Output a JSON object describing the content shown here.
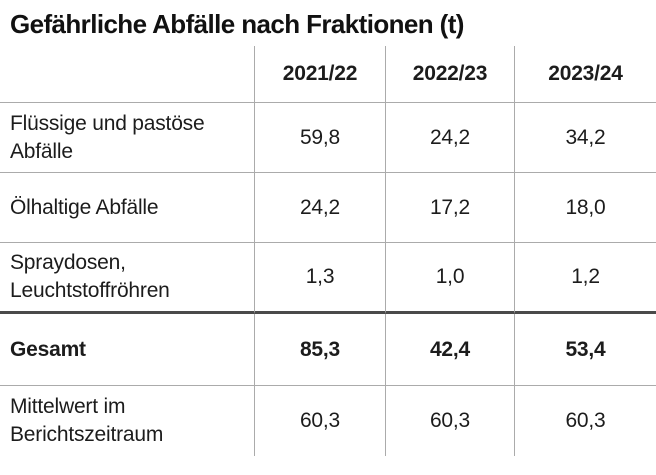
{
  "title": "Gefährliche Abfälle nach Fraktionen (t)",
  "table": {
    "col_headers": [
      "2021/22",
      "2022/23",
      "2023/24"
    ],
    "rows": [
      {
        "label": "Flüssige und pastöse Abfälle",
        "values": [
          "59,8",
          "24,2",
          "34,2"
        ]
      },
      {
        "label": "Ölhaltige Abfälle",
        "values": [
          "24,2",
          "17,2",
          "18,0"
        ]
      },
      {
        "label": "Spraydosen, Leuchtstoffröhren",
        "values": [
          "1,3",
          "1,0",
          "1,2"
        ]
      },
      {
        "label": "Gesamt",
        "values": [
          "85,3",
          "42,4",
          "53,4"
        ]
      },
      {
        "label": "Mittelwert im Berichtszeitraum",
        "values": [
          "60,3",
          "60,3",
          "60,3"
        ]
      }
    ]
  },
  "chart_data": {
    "type": "table",
    "title": "Gefährliche Abfälle nach Fraktionen (t)",
    "unit": "t",
    "categories": [
      "2021/22",
      "2022/23",
      "2023/24"
    ],
    "series": [
      {
        "name": "Flüssige und pastöse Abfälle",
        "values": [
          59.8,
          24.2,
          34.2
        ]
      },
      {
        "name": "Ölhaltige Abfälle",
        "values": [
          24.2,
          17.2,
          18.0
        ]
      },
      {
        "name": "Spraydosen, Leuchtstoffröhren",
        "values": [
          1.3,
          1.0,
          1.2
        ]
      },
      {
        "name": "Gesamt",
        "values": [
          85.3,
          42.4,
          53.4
        ],
        "bold": true
      },
      {
        "name": "Mittelwert im Berichtszeitraum",
        "values": [
          60.3,
          60.3,
          60.3
        ]
      }
    ],
    "layout": {
      "grid": "thin gray rules between rows and columns",
      "total_separator": "thick dark rule above Gesamt row"
    }
  },
  "colors": {
    "background": "#ffffff",
    "text": "#1c1c1c",
    "grid_line": "#ababab",
    "total_separator_line": "#4a4a4a"
  }
}
